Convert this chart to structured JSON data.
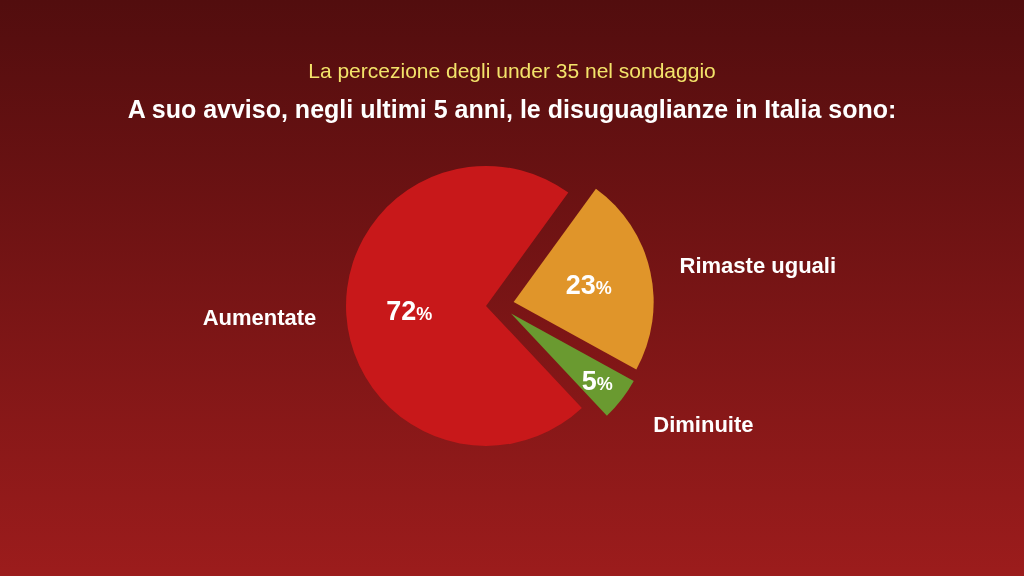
{
  "chart_data": {
    "type": "pie",
    "title": "La percezione degli under 35 nel sondaggio",
    "subtitle": "A suo avviso, negli ultimi 5 anni, le disuguaglianze in Italia sono:",
    "categories": [
      "Rimaste uguali",
      "Diminuite",
      "Aumentate"
    ],
    "values": [
      23,
      5,
      72
    ],
    "colors": [
      "#e0952a",
      "#6a9a30",
      "#c8181a"
    ],
    "value_labels": [
      "23%",
      "5%",
      "72%"
    ]
  }
}
